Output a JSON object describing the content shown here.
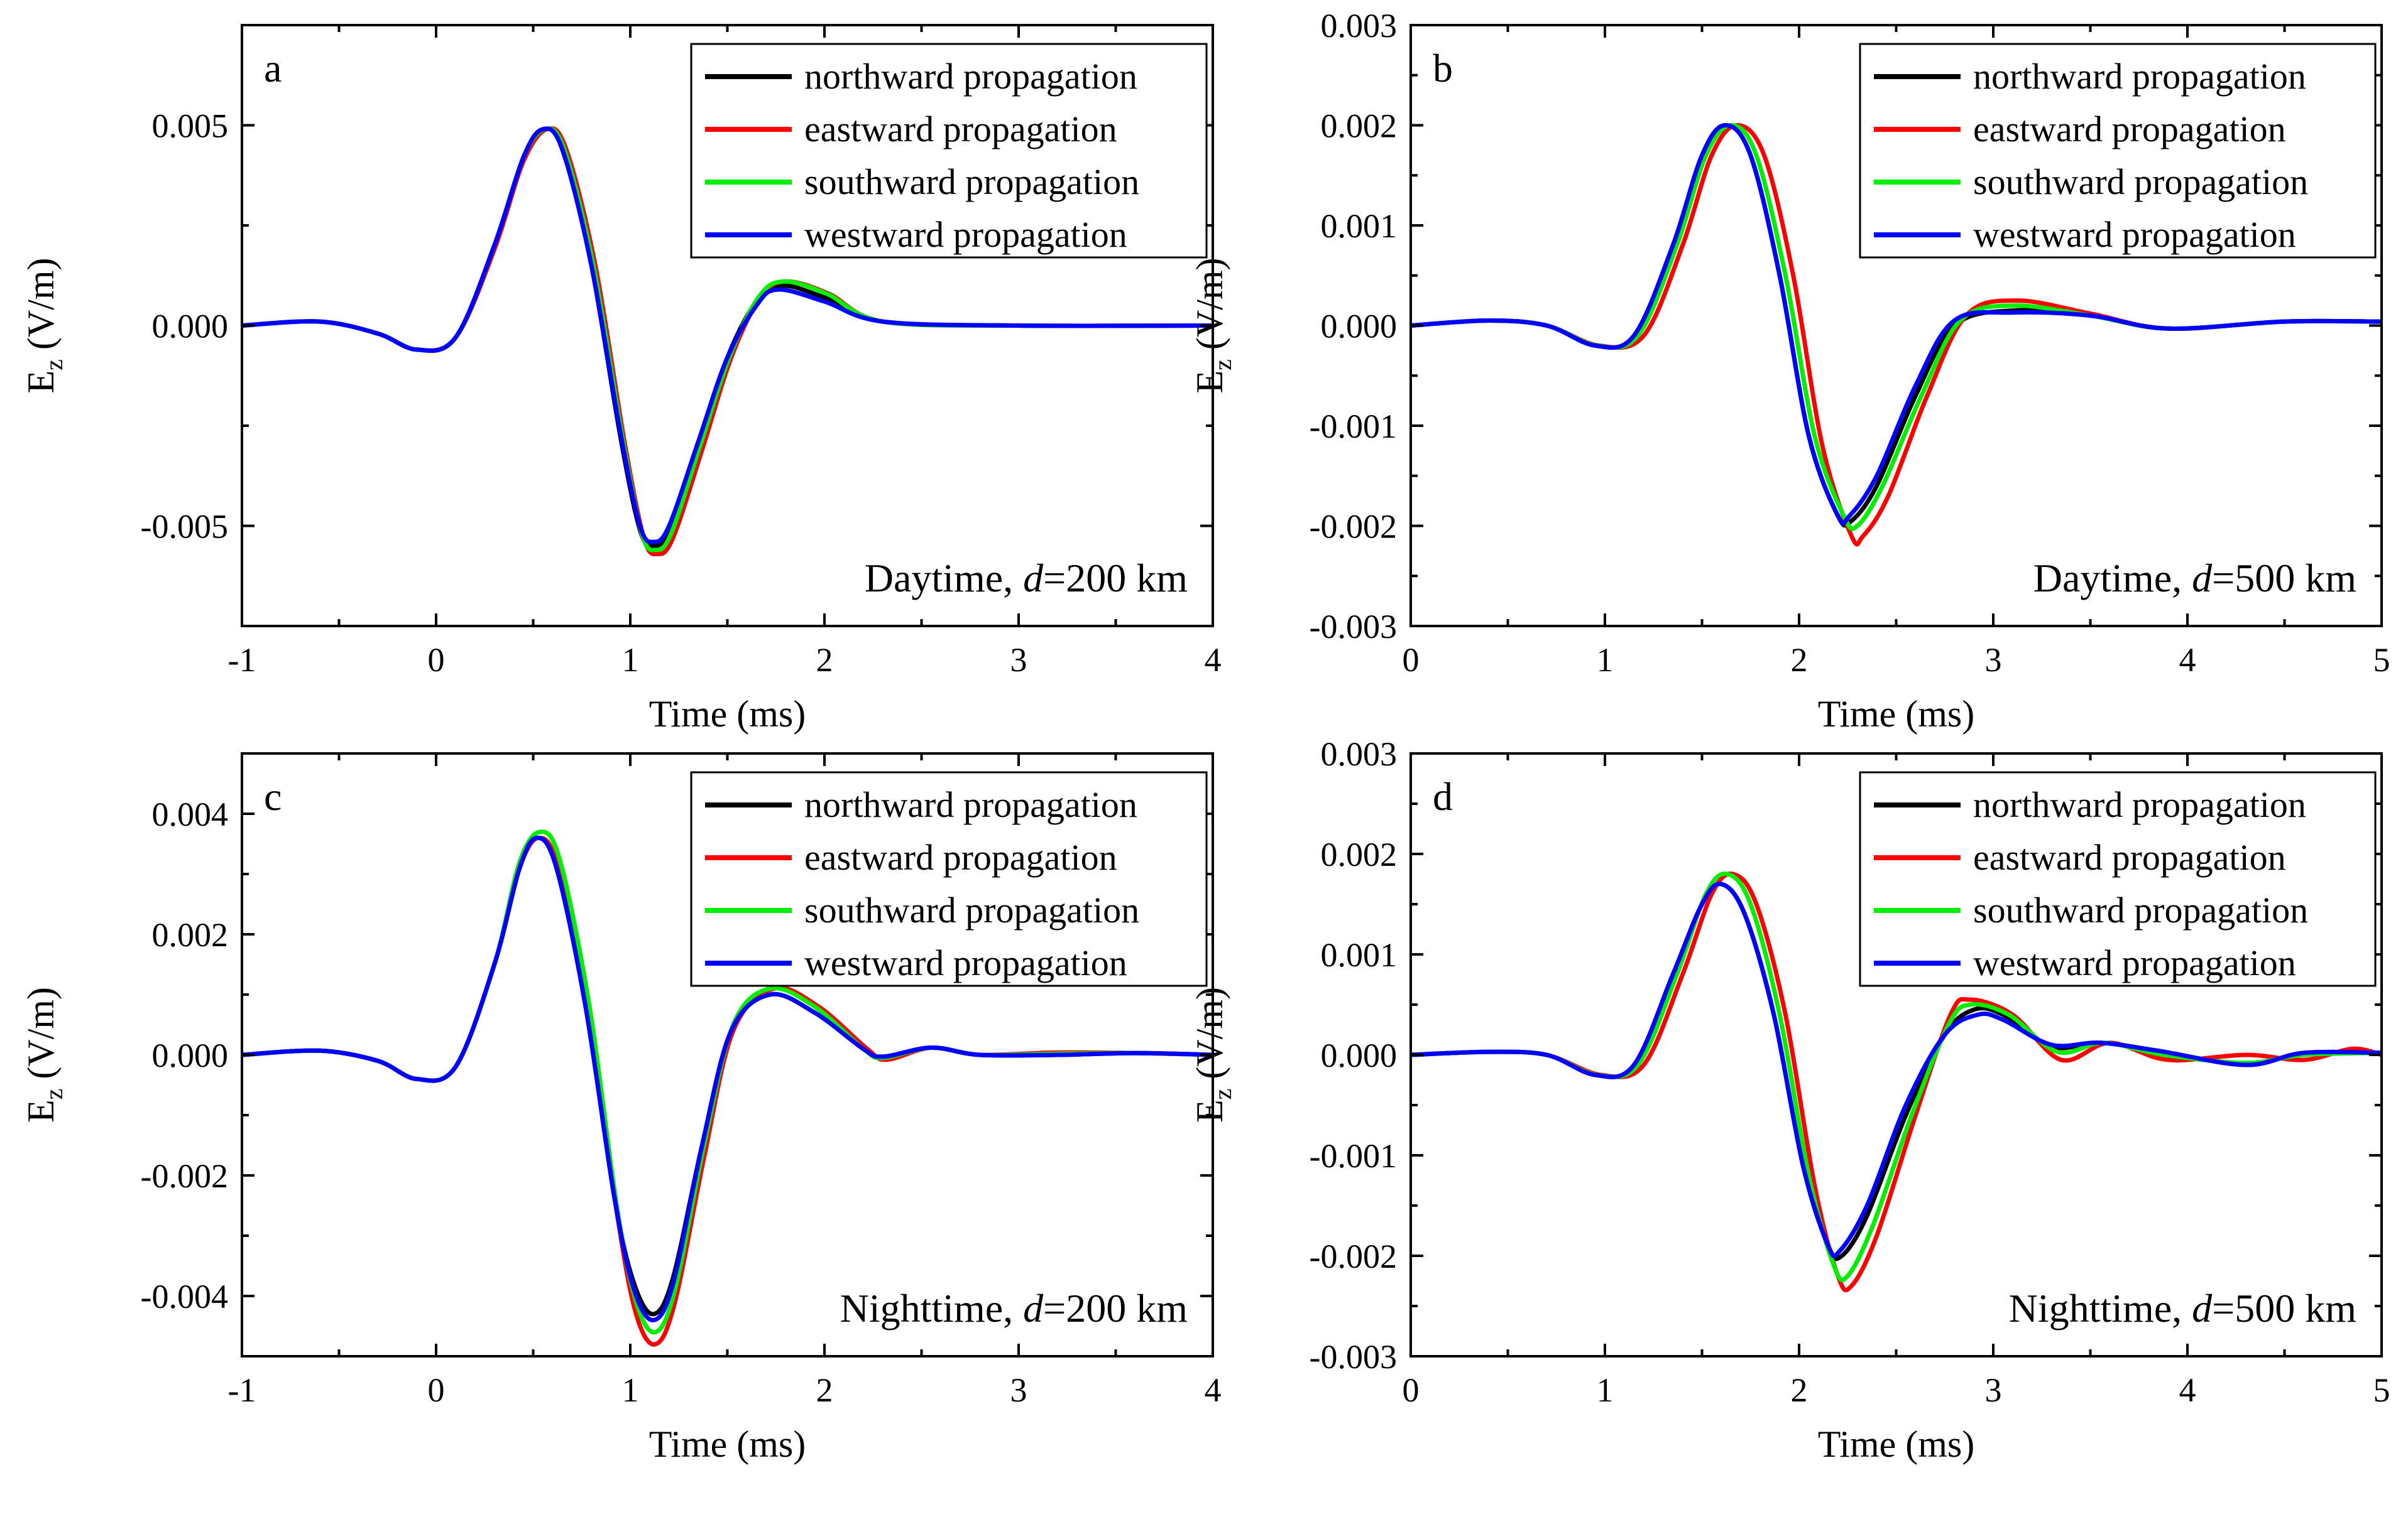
{
  "chart_data": [
    {
      "id": "a",
      "type": "line",
      "panel_label": "a",
      "annotation": {
        "prefix": "Daytime, ",
        "var": "d",
        "suffix": "=200 km"
      },
      "xlabel": "Time (ms)",
      "ylabel": {
        "main": "E",
        "sub": "z",
        "rest": " (V/m)"
      },
      "xlim": [
        -1,
        4
      ],
      "ylim": [
        -0.0075,
        0.0075
      ],
      "xticks": [
        -1,
        0,
        1,
        2,
        3,
        4
      ],
      "xtick_labels": [
        "-1",
        "0",
        "1",
        "2",
        "3",
        "4"
      ],
      "yticks": [
        -0.005,
        0,
        0.005
      ],
      "ytick_labels": [
        "-0.005",
        "0.000",
        "0.005"
      ],
      "series": [
        {
          "name": "northward propagation",
          "color": "#000000",
          "x": [
            -1,
            -0.6,
            -0.3,
            -0.1,
            0.1,
            0.3,
            0.45,
            0.55,
            0.65,
            0.8,
            0.95,
            1.05,
            1.12,
            1.2,
            1.35,
            1.5,
            1.65,
            1.78,
            2.0,
            2.3,
            3.0,
            4.0
          ],
          "y": [
            0,
            0.0001,
            -0.0002,
            -0.0006,
            -0.0003,
            0.002,
            0.0042,
            0.0049,
            0.0044,
            0.0015,
            -0.0028,
            -0.0051,
            -0.0055,
            -0.0051,
            -0.003,
            -0.0008,
            0.0006,
            0.001,
            0.0007,
            0.0001,
            0,
            0
          ]
        },
        {
          "name": "eastward propagation",
          "color": "#ff0000",
          "x": [
            -1,
            -0.6,
            -0.3,
            -0.1,
            0.1,
            0.3,
            0.45,
            0.57,
            0.67,
            0.82,
            0.97,
            1.07,
            1.14,
            1.22,
            1.37,
            1.52,
            1.67,
            1.8,
            2.02,
            2.3,
            3.0,
            4.0
          ],
          "y": [
            0,
            0.0001,
            -0.0002,
            -0.0006,
            -0.0003,
            0.0019,
            0.0041,
            0.0049,
            0.0044,
            0.0015,
            -0.0029,
            -0.0053,
            -0.0057,
            -0.0053,
            -0.0031,
            -0.0008,
            0.0007,
            0.0011,
            0.0008,
            0.0001,
            0,
            0
          ]
        },
        {
          "name": "southward propagation",
          "color": "#00ee00",
          "x": [
            -1,
            -0.6,
            -0.3,
            -0.1,
            0.1,
            0.3,
            0.45,
            0.56,
            0.66,
            0.81,
            0.96,
            1.06,
            1.13,
            1.21,
            1.36,
            1.51,
            1.66,
            1.79,
            2.01,
            2.3,
            3.0,
            4.0
          ],
          "y": [
            0,
            0.0001,
            -0.0002,
            -0.0006,
            -0.0003,
            0.002,
            0.0042,
            0.0049,
            0.0044,
            0.0015,
            -0.0028,
            -0.0052,
            -0.0056,
            -0.0052,
            -0.003,
            -0.0008,
            0.0007,
            0.0011,
            0.0008,
            0.0001,
            0,
            0
          ]
        },
        {
          "name": "westward propagation",
          "color": "#0000ff",
          "x": [
            -1,
            -0.6,
            -0.3,
            -0.1,
            0.1,
            0.3,
            0.45,
            0.55,
            0.65,
            0.8,
            0.95,
            1.05,
            1.12,
            1.2,
            1.35,
            1.5,
            1.65,
            1.76,
            2.0,
            2.3,
            3.0,
            4.0
          ],
          "y": [
            0,
            0.0001,
            -0.0002,
            -0.0006,
            -0.0003,
            0.002,
            0.0042,
            0.0049,
            0.0044,
            0.0015,
            -0.0027,
            -0.005,
            -0.0054,
            -0.005,
            -0.0029,
            -0.0008,
            0.0005,
            0.0009,
            0.0006,
            0.0001,
            0,
            0
          ]
        }
      ]
    },
    {
      "id": "b",
      "type": "line",
      "panel_label": "b",
      "annotation": {
        "prefix": "Daytime, ",
        "var": "d",
        "suffix": "=500 km"
      },
      "xlabel": "Time (ms)",
      "ylabel": {
        "main": "E",
        "sub": "z",
        "rest": " (V/m)"
      },
      "xlim": [
        0,
        5
      ],
      "ylim": [
        -0.003,
        0.003
      ],
      "xticks": [
        0,
        1,
        2,
        3,
        4,
        5
      ],
      "xtick_labels": [
        "0",
        "1",
        "2",
        "3",
        "4",
        "5"
      ],
      "yticks": [
        -0.003,
        -0.002,
        -0.001,
        0,
        0.001,
        0.002,
        0.003
      ],
      "ytick_labels": [
        "-0.003",
        "-0.002",
        "-0.001",
        "0.000",
        "0.001",
        "0.002",
        "0.003"
      ],
      "series": [
        {
          "name": "northward propagation",
          "color": "#000000",
          "x": [
            0,
            0.4,
            0.7,
            0.95,
            1.15,
            1.35,
            1.5,
            1.62,
            1.75,
            1.9,
            2.05,
            2.2,
            2.27,
            2.4,
            2.6,
            2.8,
            3.1,
            3.5,
            3.9,
            4.5,
            5.0
          ],
          "y": [
            0,
            5e-05,
            0,
            -0.0002,
            -0.0001,
            0.0008,
            0.0017,
            0.002,
            0.0017,
            0.0005,
            -0.0011,
            -0.0019,
            -0.00195,
            -0.0016,
            -0.0007,
            0,
            0.00015,
            0.0001,
            -3e-05,
            4e-05,
            4e-05
          ]
        },
        {
          "name": "eastward propagation",
          "color": "#ff0000",
          "x": [
            0,
            0.4,
            0.7,
            0.97,
            1.2,
            1.4,
            1.55,
            1.68,
            1.82,
            1.97,
            2.12,
            2.27,
            2.33,
            2.46,
            2.66,
            2.86,
            3.12,
            3.5,
            3.9,
            4.5,
            5.0
          ],
          "y": [
            0,
            5e-05,
            0,
            -0.0002,
            -0.0001,
            0.0008,
            0.0017,
            0.002,
            0.0017,
            0.0005,
            -0.0012,
            -0.0021,
            -0.0021,
            -0.0017,
            -0.0007,
            0.0001,
            0.00025,
            0.00012,
            -3e-05,
            4e-05,
            4e-05
          ]
        },
        {
          "name": "southward propagation",
          "color": "#00ee00",
          "x": [
            0,
            0.4,
            0.7,
            0.96,
            1.17,
            1.37,
            1.52,
            1.65,
            1.78,
            1.93,
            2.08,
            2.23,
            2.3,
            2.43,
            2.63,
            2.83,
            3.1,
            3.5,
            3.9,
            4.5,
            5.0
          ],
          "y": [
            0,
            5e-05,
            0,
            -0.0002,
            -0.0001,
            0.0008,
            0.0017,
            0.002,
            0.0017,
            0.0005,
            -0.0011,
            -0.0019,
            -0.002,
            -0.0016,
            -0.0007,
            5e-05,
            0.0002,
            0.0001,
            -3e-05,
            4e-05,
            4e-05
          ]
        },
        {
          "name": "westward propagation",
          "color": "#0000ff",
          "x": [
            0,
            0.4,
            0.7,
            0.95,
            1.15,
            1.35,
            1.5,
            1.62,
            1.75,
            1.9,
            2.05,
            2.2,
            2.26,
            2.4,
            2.6,
            2.8,
            3.1,
            3.5,
            3.9,
            4.5,
            5.0
          ],
          "y": [
            0,
            5e-05,
            0,
            -0.0002,
            -0.0001,
            0.0008,
            0.0017,
            0.002,
            0.0017,
            0.0005,
            -0.0011,
            -0.0019,
            -0.0019,
            -0.0015,
            -0.0006,
            5e-05,
            0.00013,
            0.0001,
            -3e-05,
            4e-05,
            4e-05
          ]
        }
      ]
    },
    {
      "id": "c",
      "type": "line",
      "panel_label": "c",
      "annotation": {
        "prefix": "Nighttime, ",
        "var": "d",
        "suffix": "=200 km"
      },
      "xlabel": "Time (ms)",
      "ylabel": {
        "main": "E",
        "sub": "z",
        "rest": " (V/m)"
      },
      "xlim": [
        -1,
        4
      ],
      "ylim": [
        -0.005,
        0.005
      ],
      "xticks": [
        -1,
        0,
        1,
        2,
        3,
        4
      ],
      "xtick_labels": [
        "-1",
        "0",
        "1",
        "2",
        "3",
        "4"
      ],
      "yticks": [
        -0.004,
        -0.002,
        0,
        0.002,
        0.004
      ],
      "ytick_labels": [
        "-0.004",
        "-0.002",
        "0.000",
        "0.002",
        "0.004"
      ],
      "series": [
        {
          "name": "northward propagation",
          "color": "#000000",
          "x": [
            -1,
            -0.6,
            -0.3,
            -0.1,
            0.1,
            0.3,
            0.43,
            0.52,
            0.62,
            0.77,
            0.92,
            1.02,
            1.12,
            1.22,
            1.37,
            1.52,
            1.72,
            1.95,
            2.2,
            2.3,
            2.55,
            2.8,
            3.2,
            3.6,
            4.0
          ],
          "y": [
            0,
            7e-05,
            -0.0001,
            -0.0004,
            -0.0002,
            0.0015,
            0.0031,
            0.0036,
            0.0031,
            0.0008,
            -0.0024,
            -0.0038,
            -0.0043,
            -0.0037,
            -0.0015,
            0.0004,
            0.001,
            0.0007,
            0.0001,
            -3e-05,
            0.00012,
            0,
            0,
            3e-05,
            0
          ]
        },
        {
          "name": "eastward propagation",
          "color": "#ff0000",
          "x": [
            -1,
            -0.6,
            -0.3,
            -0.1,
            0.1,
            0.3,
            0.43,
            0.53,
            0.63,
            0.78,
            0.93,
            1.03,
            1.13,
            1.23,
            1.38,
            1.53,
            1.74,
            1.97,
            2.22,
            2.32,
            2.55,
            2.8,
            3.2,
            3.6,
            4.0
          ],
          "y": [
            0,
            7e-05,
            -0.0001,
            -0.0004,
            -0.0002,
            0.0015,
            0.0031,
            0.0036,
            0.0031,
            0.0008,
            -0.0026,
            -0.0043,
            -0.0048,
            -0.0041,
            -0.0017,
            0.0004,
            0.0011,
            0.0008,
            0.0001,
            -8e-05,
            0.00012,
            0,
            4e-05,
            3e-05,
            0
          ]
        },
        {
          "name": "southward propagation",
          "color": "#00ee00",
          "x": [
            -1,
            -0.6,
            -0.3,
            -0.1,
            0.1,
            0.3,
            0.43,
            0.54,
            0.64,
            0.79,
            0.93,
            1.03,
            1.13,
            1.23,
            1.38,
            1.53,
            1.72,
            1.95,
            2.2,
            2.3,
            2.55,
            2.8,
            3.2,
            3.6,
            4.0
          ],
          "y": [
            0,
            7e-05,
            -0.0001,
            -0.0004,
            -0.0002,
            0.0015,
            0.0032,
            0.0037,
            0.0032,
            0.0008,
            -0.0025,
            -0.0041,
            -0.0046,
            -0.0039,
            -0.0015,
            0.0005,
            0.0011,
            0.0008,
            0.0001,
            -5e-05,
            0.00012,
            0,
            2e-05,
            3e-05,
            0
          ]
        },
        {
          "name": "westward propagation",
          "color": "#0000ff",
          "x": [
            -1,
            -0.6,
            -0.3,
            -0.1,
            0.1,
            0.3,
            0.43,
            0.52,
            0.62,
            0.77,
            0.92,
            1.02,
            1.12,
            1.22,
            1.37,
            1.52,
            1.72,
            1.95,
            2.2,
            2.3,
            2.55,
            2.8,
            3.2,
            3.6,
            4.0
          ],
          "y": [
            0,
            7e-05,
            -0.0001,
            -0.0004,
            -0.0002,
            0.0015,
            0.0031,
            0.0036,
            0.0031,
            0.0008,
            -0.0024,
            -0.0039,
            -0.0044,
            -0.0038,
            -0.0015,
            0.0004,
            0.001,
            0.0007,
            0.0001,
            -3e-05,
            0.00012,
            0,
            0,
            3e-05,
            0
          ]
        }
      ]
    },
    {
      "id": "d",
      "type": "line",
      "panel_label": "d",
      "annotation": {
        "prefix": "Nighttime, ",
        "var": "d",
        "suffix": "=500 km"
      },
      "xlabel": "Time (ms)",
      "ylabel": {
        "main": "E",
        "sub": "z",
        "rest": " (V/m)"
      },
      "xlim": [
        0,
        5
      ],
      "ylim": [
        -0.003,
        0.003
      ],
      "xticks": [
        0,
        1,
        2,
        3,
        4,
        5
      ],
      "xtick_labels": [
        "0",
        "1",
        "2",
        "3",
        "4",
        "5"
      ],
      "yticks": [
        -0.003,
        -0.002,
        -0.001,
        0,
        0.001,
        0.002,
        0.003
      ],
      "ytick_labels": [
        "-0.003",
        "-0.002",
        "-0.001",
        "0.000",
        "0.001",
        "0.002",
        "0.003"
      ],
      "series": [
        {
          "name": "northward propagation",
          "color": "#000000",
          "x": [
            0,
            0.4,
            0.7,
            0.95,
            1.15,
            1.35,
            1.5,
            1.6,
            1.72,
            1.87,
            2.02,
            2.15,
            2.22,
            2.35,
            2.55,
            2.75,
            2.9,
            3.05,
            3.3,
            3.55,
            3.85,
            4.3,
            4.6,
            5.0
          ],
          "y": [
            0,
            3e-05,
            0,
            -0.0002,
            -0.0001,
            0.0008,
            0.0015,
            0.0017,
            0.0014,
            0.0004,
            -0.0011,
            -0.0019,
            -0.002,
            -0.0016,
            -0.0006,
            0.0002,
            0.00045,
            0.0004,
            8e-05,
            0.00012,
            4e-05,
            -0.0001,
            2e-05,
            2e-05
          ]
        },
        {
          "name": "eastward propagation",
          "color": "#ff0000",
          "x": [
            0,
            0.4,
            0.7,
            0.98,
            1.2,
            1.4,
            1.55,
            1.66,
            1.78,
            1.93,
            2.08,
            2.2,
            2.27,
            2.4,
            2.6,
            2.78,
            2.88,
            3.1,
            3.35,
            3.6,
            3.9,
            4.3,
            4.6,
            4.85,
            5.0
          ],
          "y": [
            0,
            3e-05,
            0,
            -0.0002,
            -0.0001,
            0.0008,
            0.0016,
            0.0018,
            0.0015,
            0.0004,
            -0.0013,
            -0.0022,
            -0.0023,
            -0.0018,
            -0.0006,
            0.0004,
            0.00055,
            0.0004,
            -5e-05,
            0.00012,
            -5e-05,
            0,
            -5e-05,
            6e-05,
            0
          ]
        },
        {
          "name": "southward propagation",
          "color": "#00ee00",
          "x": [
            0,
            0.4,
            0.7,
            0.96,
            1.17,
            1.37,
            1.52,
            1.63,
            1.75,
            1.9,
            2.05,
            2.18,
            2.25,
            2.38,
            2.58,
            2.77,
            2.88,
            3.08,
            3.33,
            3.57,
            3.88,
            4.3,
            4.6,
            5.0
          ],
          "y": [
            0,
            3e-05,
            0,
            -0.0002,
            -0.0001,
            0.0008,
            0.0016,
            0.0018,
            0.0015,
            0.0004,
            -0.0012,
            -0.0021,
            -0.0022,
            -0.0017,
            -0.0006,
            0.0003,
            0.0005,
            0.0004,
            3e-05,
            0.00012,
            0,
            -8e-05,
            0,
            2e-05
          ]
        },
        {
          "name": "westward propagation",
          "color": "#0000ff",
          "x": [
            0,
            0.4,
            0.7,
            0.95,
            1.15,
            1.35,
            1.5,
            1.6,
            1.72,
            1.87,
            2.02,
            2.15,
            2.21,
            2.35,
            2.55,
            2.75,
            2.92,
            3.05,
            3.3,
            3.55,
            3.85,
            4.3,
            4.6,
            5.0
          ],
          "y": [
            0,
            3e-05,
            0,
            -0.0002,
            -0.0001,
            0.0008,
            0.0015,
            0.0017,
            0.0014,
            0.0004,
            -0.0011,
            -0.0019,
            -0.00195,
            -0.0015,
            -0.0005,
            0.0002,
            0.0004,
            0.00035,
            0.0001,
            0.00012,
            4e-05,
            -0.0001,
            2e-05,
            2e-05
          ]
        }
      ]
    }
  ]
}
